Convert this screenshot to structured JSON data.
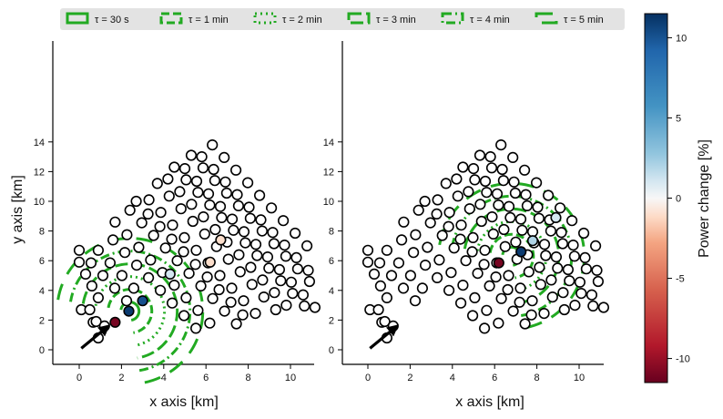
{
  "chart_data": [
    {
      "type": "scatter",
      "panel": "left",
      "xlabel": "x axis [km]",
      "ylabel": "y axis [km]",
      "xlim": [
        -1.2,
        11.6
      ],
      "ylim": [
        -0.8,
        14.6
      ],
      "xticks": [
        0,
        2,
        4,
        6,
        8,
        10
      ],
      "yticks": [
        0,
        2,
        4,
        6,
        8,
        10,
        12,
        14
      ],
      "center": [
        2.4,
        2.6
      ],
      "marked_points": [
        {
          "x": 1.7,
          "y": 1.85,
          "value": -11
        },
        {
          "x": 2.35,
          "y": 2.6,
          "value": 11
        },
        {
          "x": 3.0,
          "y": 3.3,
          "value": 10
        },
        {
          "x": 6.7,
          "y": 7.4,
          "value": -1
        },
        {
          "x": 6.2,
          "y": 5.9,
          "value": -1
        },
        {
          "x": 4.3,
          "y": 5.1,
          "value": 1
        }
      ],
      "wind_arrow": {
        "from": [
          0.1,
          0.1
        ],
        "to": [
          1.25,
          1.45
        ]
      }
    },
    {
      "type": "scatter",
      "panel": "right",
      "xlabel": "x axis [km]",
      "ylabel": "",
      "xlim": [
        -1.2,
        11.6
      ],
      "ylim": [
        -0.8,
        14.6
      ],
      "xticks": [
        0,
        2,
        4,
        6,
        8,
        10
      ],
      "yticks": [
        0,
        2,
        4,
        6,
        8,
        10,
        12,
        14
      ],
      "center": [
        6.8,
        6.3
      ],
      "marked_points": [
        {
          "x": 6.2,
          "y": 5.85,
          "value": -11
        },
        {
          "x": 7.25,
          "y": 6.6,
          "value": 11
        },
        {
          "x": 7.8,
          "y": 7.35,
          "value": 2
        },
        {
          "x": 8.9,
          "y": 8.9,
          "value": 1
        }
      ],
      "wind_arrow": {
        "from": [
          0.1,
          0.1
        ],
        "to": [
          1.25,
          1.45
        ]
      }
    }
  ],
  "legend": {
    "placement": "top",
    "entries": [
      {
        "label": "τ = 30 s",
        "dash": "solid"
      },
      {
        "label": "τ = 1 min",
        "dash": "dashed"
      },
      {
        "label": "τ = 2 min",
        "dash": "dotted"
      },
      {
        "label": "τ = 3 min",
        "dash": "longdash"
      },
      {
        "label": "τ = 4 min",
        "dash": "dashdot"
      },
      {
        "label": "τ = 5 min",
        "dash": "sparse"
      }
    ]
  },
  "colorbar": {
    "label": "Power change [%]",
    "range": [
      -11.5,
      11.5
    ],
    "ticks": [
      {
        "value": 10,
        "label": "10"
      },
      {
        "value": 5,
        "label": "5"
      },
      {
        "value": 0,
        "label": "0"
      },
      {
        "value": -5,
        "label": "-5"
      },
      {
        "value": -10,
        "label": "-10"
      }
    ]
  },
  "colors": {
    "contour": "#22aa22",
    "marker_edge": "#000000",
    "marker_fill": "#ffffff",
    "cmap": [
      "#67001f",
      "#b2182b",
      "#d6604d",
      "#f4a582",
      "#fddbc7",
      "#f7f7f7",
      "#d1e5f0",
      "#92c5de",
      "#4393c3",
      "#2166ac",
      "#053061"
    ],
    "legend_bg": "#e3e3e3"
  }
}
